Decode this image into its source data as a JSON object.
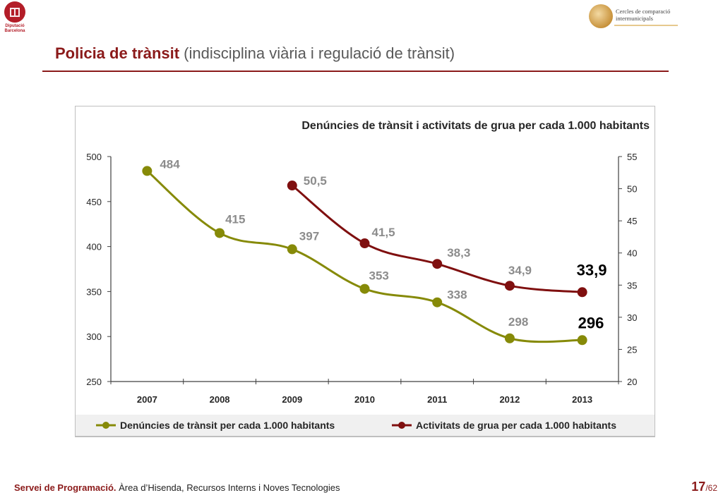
{
  "header": {
    "logo_text_line1": "Diputació",
    "logo_text_line2": "Barcelona",
    "brand_line1": "Cercles de comparació",
    "brand_line2": "intermunicipals"
  },
  "page": {
    "title_strong": "Policia de trànsit",
    "title_rest": " (indisciplina viària i regulació de trànsit)"
  },
  "footer": {
    "org_strong": "Servei de Programació.",
    "org_rest": " Àrea d’Hisenda, Recursos Interns i Noves Tecnologies",
    "page_number": "17",
    "page_total": "/62"
  },
  "colors": {
    "series1": "#868a08",
    "series2": "#7f0f0f",
    "label_gray": "#8c8c8c",
    "accent": "#8b1a1a"
  },
  "chart_data": {
    "type": "line",
    "title": "Denúncies de trànsit i activitats de grua per cada 1.000 habitants",
    "categories": [
      "2007",
      "2008",
      "2009",
      "2010",
      "2011",
      "2012",
      "2013"
    ],
    "y_left": {
      "ylim": [
        250,
        500
      ],
      "ticks": [
        "250",
        "300",
        "350",
        "400",
        "450",
        "500"
      ]
    },
    "y_right": {
      "ylim": [
        20,
        55
      ],
      "ticks": [
        "20",
        "25",
        "30",
        "35",
        "40",
        "45",
        "50",
        "55"
      ]
    },
    "series": [
      {
        "name": "Denúncies de trànsit per cada 1.000 habitants",
        "axis": "left",
        "values": [
          484,
          415,
          397,
          353,
          338,
          298,
          296
        ],
        "labels": [
          "484",
          "415",
          "397",
          "353",
          "338",
          "298",
          "296"
        ],
        "color": "#868a08"
      },
      {
        "name": "Activitats de grua per cada 1.000 habitants",
        "axis": "right",
        "values": [
          null,
          null,
          50.5,
          41.5,
          38.3,
          34.9,
          33.9
        ],
        "labels": [
          "",
          "",
          "50,5",
          "41,5",
          "38,3",
          "34,9",
          "33,9"
        ],
        "color": "#7f0f0f"
      }
    ],
    "grid": false,
    "legend": "bottom"
  }
}
